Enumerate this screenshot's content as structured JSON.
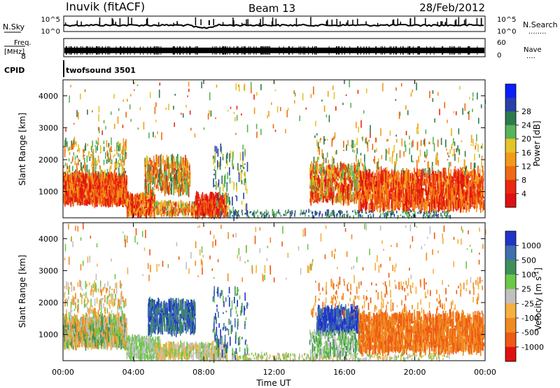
{
  "header": {
    "station": "Inuvik (fitACF)",
    "beam": "Beam 13",
    "date": "28/Feb/2012"
  },
  "top_panels": {
    "nsky": {
      "label": "N.Sky",
      "axis_top": "10^5",
      "axis_bottom": "10^0",
      "right_axis_top": "10^5",
      "right_axis_bottom": "10^0",
      "right_label": "N.Search",
      "right_label_dots": "........"
    },
    "freq": {
      "label_line1": "Freq.",
      "label_line2": "[MHz]",
      "axis_bottom": "8",
      "right_axis_top": "60",
      "right_axis_bottom": "0",
      "right_label": "Nave",
      "right_label_dots": "...."
    },
    "cpid": {
      "label": "CPID",
      "text": "twofsound 3501"
    }
  },
  "chart_data": [
    {
      "type": "heatmap",
      "name": "power-panel",
      "ylabel": "Slant Range [km]",
      "xlabel": "",
      "x_ticks": [
        "00:00",
        "04:00",
        "08:00",
        "12:00",
        "16:00",
        "20:00",
        "00:00"
      ],
      "xlim": [
        0,
        24
      ],
      "ylim": [
        180,
        4500
      ],
      "y_ticks": [
        1000,
        2000,
        3000,
        4000
      ],
      "colorbar": {
        "label": "Power [dB]",
        "ticks": [
          "4",
          "8",
          "12",
          "16",
          "20",
          "24",
          "28"
        ],
        "colors": [
          "#0a1eff",
          "#2b3fa8",
          "#2f7a4c",
          "#58b35a",
          "#e4c42a",
          "#f39a1a",
          "#ef6a10",
          "#ea2a10",
          "#e01010"
        ]
      },
      "regions": [
        {
          "x": [
            0.0,
            3.6
          ],
          "y": [
            600,
            1500
          ],
          "value": "strong"
        },
        {
          "x": [
            3.6,
            9.2
          ],
          "y": [
            200,
            2100
          ],
          "value": "mixed"
        },
        {
          "x": [
            14.4,
            23.9
          ],
          "y": [
            500,
            1700
          ],
          "value": "strong"
        }
      ]
    },
    {
      "type": "heatmap",
      "name": "velocity-panel",
      "ylabel": "Slant Range [km]",
      "xlabel": "Time UT",
      "x_ticks": [
        "00:00",
        "04:00",
        "08:00",
        "12:00",
        "16:00",
        "20:00",
        "00:00"
      ],
      "xlim": [
        0,
        24
      ],
      "ylim": [
        180,
        4500
      ],
      "y_ticks": [
        1000,
        2000,
        3000,
        4000
      ],
      "colorbar": {
        "label": "Velocity [m s^-1]",
        "ticks": [
          "1000",
          "500",
          "100",
          "25",
          "-25",
          "-100",
          "-500",
          "-1000"
        ],
        "colors": [
          "#2034c8",
          "#3f6fae",
          "#3f8f5a",
          "#6cc848",
          "#c0c0c0",
          "#f5b040",
          "#f08a20",
          "#ee5a12",
          "#e01010"
        ]
      },
      "regions": [
        {
          "x": [
            0.0,
            3.6
          ],
          "y": [
            600,
            1500
          ],
          "value": "mixed"
        },
        {
          "x": [
            4.8,
            7.5
          ],
          "y": [
            1100,
            2000
          ],
          "value": "positive"
        },
        {
          "x": [
            14.4,
            16.8
          ],
          "y": [
            1100,
            1800
          ],
          "value": "positive"
        },
        {
          "x": [
            16.8,
            23.9
          ],
          "y": [
            500,
            1700
          ],
          "value": "negative"
        }
      ]
    }
  ]
}
